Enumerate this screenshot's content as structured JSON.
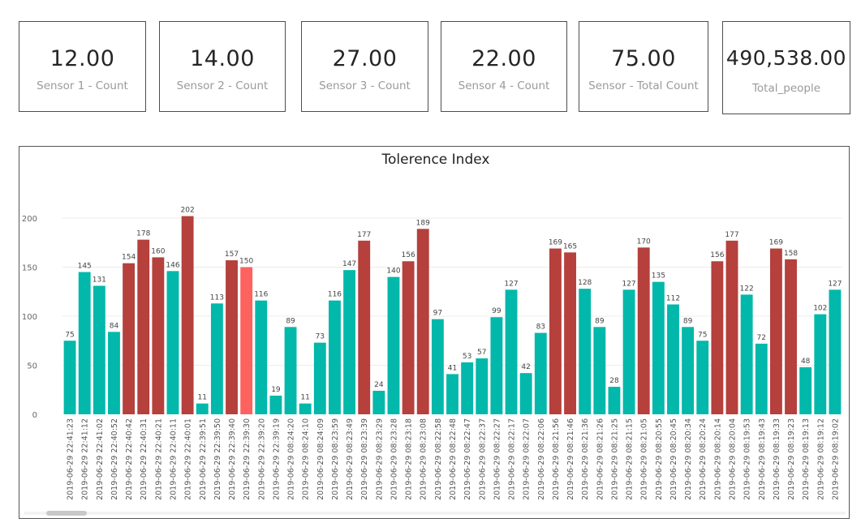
{
  "cards": [
    {
      "value": "12.00",
      "label": "Sensor 1 - Count"
    },
    {
      "value": "14.00",
      "label": "Sensor 2 - Count"
    },
    {
      "value": "27.00",
      "label": "Sensor 3 - Count"
    },
    {
      "value": "22.00",
      "label": "Sensor 4 - Count"
    },
    {
      "value": "75.00",
      "label": "Sensor - Total Count"
    },
    {
      "value": "490,538.00",
      "label": "Total_people"
    }
  ],
  "colors": {
    "teal": "#01b8aa",
    "red": "#b5403c",
    "highlight": "#fd625e"
  },
  "chart_data": {
    "type": "bar",
    "title": "Tolerence Index",
    "ylim": [
      0,
      230
    ],
    "yticks": [
      0,
      50,
      100,
      150,
      200
    ],
    "grid": true,
    "categories": [
      "2019-06-29 22:41:23",
      "2019-06-29 22:41:12",
      "2019-06-29 22:41:02",
      "2019-06-29 22:40:52",
      "2019-06-29 22:40:42",
      "2019-06-29 22:40:31",
      "2019-06-29 22:40:21",
      "2019-06-29 22:40:11",
      "2019-06-29 22:40:01",
      "2019-06-29 22:39:51",
      "2019-06-29 22:39:50",
      "2019-06-29 22:39:40",
      "2019-06-29 22:39:30",
      "2019-06-29 22:39:20",
      "2019-06-29 22:39:19",
      "2019-06-29 08:24:20",
      "2019-06-29 08:24:10",
      "2019-06-29 08:24:09",
      "2019-06-29 08:23:59",
      "2019-06-29 08:23:49",
      "2019-06-29 08:23:39",
      "2019-06-29 08:23:29",
      "2019-06-29 08:23:28",
      "2019-06-29 08:23:18",
      "2019-06-29 08:23:08",
      "2019-06-29 08:22:58",
      "2019-06-29 08:22:48",
      "2019-06-29 08:22:47",
      "2019-06-29 08:22:37",
      "2019-06-29 08:22:27",
      "2019-06-29 08:22:17",
      "2019-06-29 08:22:07",
      "2019-06-29 08:22:06",
      "2019-06-29 08:21:56",
      "2019-06-29 08:21:46",
      "2019-06-29 08:21:36",
      "2019-06-29 08:21:26",
      "2019-06-29 08:21:25",
      "2019-06-29 08:21:15",
      "2019-06-29 08:21:05",
      "2019-06-29 08:20:55",
      "2019-06-29 08:20:45",
      "2019-06-29 08:20:34",
      "2019-06-29 08:20:24",
      "2019-06-29 08:20:14",
      "2019-06-29 08:20:04",
      "2019-06-29 08:19:53",
      "2019-06-29 08:19:43",
      "2019-06-29 08:19:33",
      "2019-06-29 08:19:23",
      "2019-06-29 08:19:13",
      "2019-06-29 08:19:12",
      "2019-06-29 08:19:02"
    ],
    "values": [
      75,
      145,
      131,
      84,
      154,
      178,
      160,
      146,
      202,
      11,
      113,
      157,
      150,
      116,
      19,
      89,
      11,
      73,
      116,
      147,
      177,
      24,
      140,
      156,
      189,
      97,
      41,
      53,
      57,
      99,
      127,
      42,
      83,
      169,
      165,
      128,
      89,
      28,
      127,
      170,
      135,
      112,
      89,
      75,
      156,
      177,
      122,
      72,
      169,
      158,
      48,
      102,
      127
    ],
    "bar_colors": [
      "teal",
      "teal",
      "teal",
      "teal",
      "red",
      "red",
      "red",
      "teal",
      "red",
      "teal",
      "teal",
      "red",
      "highlight",
      "teal",
      "teal",
      "teal",
      "teal",
      "teal",
      "teal",
      "teal",
      "red",
      "teal",
      "teal",
      "red",
      "red",
      "teal",
      "teal",
      "teal",
      "teal",
      "teal",
      "teal",
      "teal",
      "teal",
      "red",
      "red",
      "teal",
      "teal",
      "teal",
      "teal",
      "red",
      "teal",
      "teal",
      "teal",
      "teal",
      "red",
      "red",
      "teal",
      "teal",
      "red",
      "red",
      "teal",
      "teal",
      "teal"
    ]
  }
}
